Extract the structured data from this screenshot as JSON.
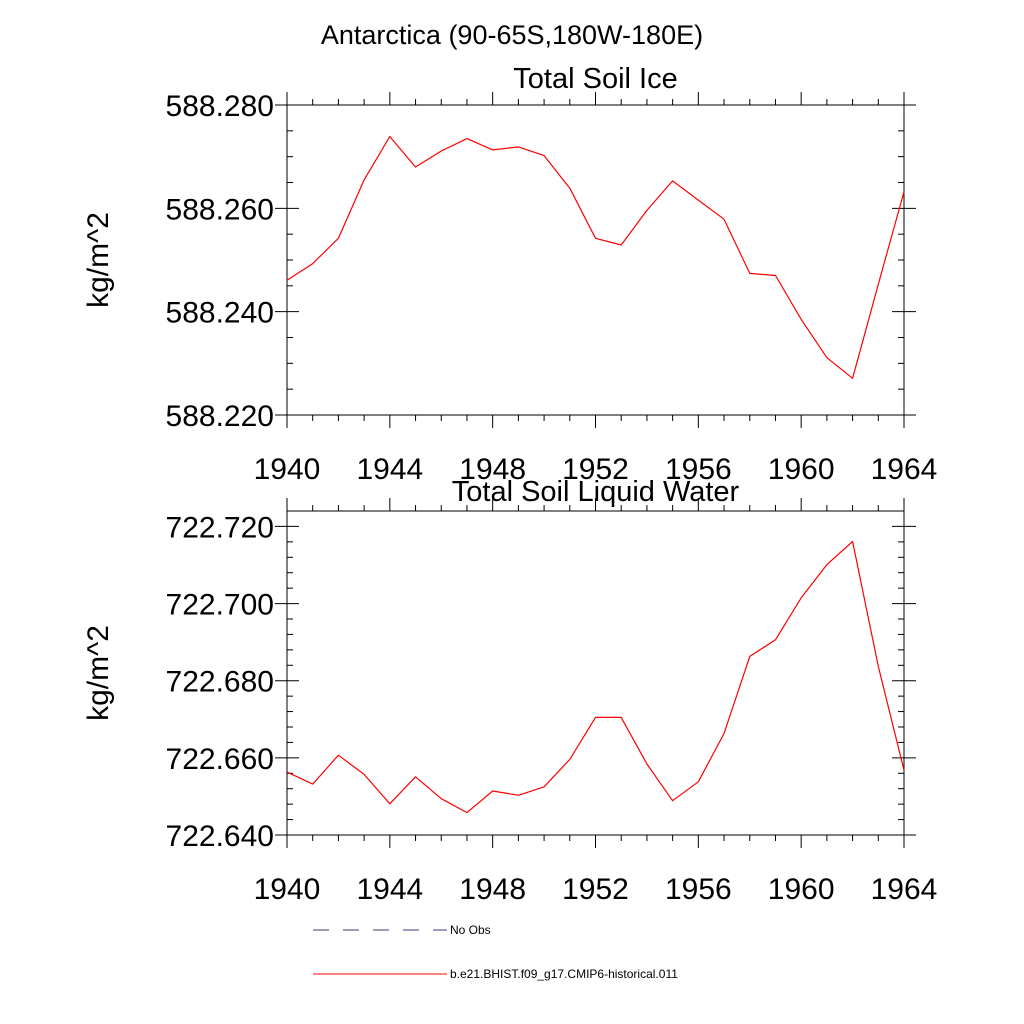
{
  "figure": {
    "title": "Antarctica (90-65S,180W-180E)"
  },
  "colors": {
    "model_line": "#ff0000",
    "obs_line": "#3a3a7a",
    "axis": "#000000",
    "background": "#ffffff"
  },
  "legend": {
    "placement": "bottom",
    "entries": [
      {
        "label": "No Obs",
        "style": "dashed",
        "color": "#3a3a7a"
      },
      {
        "label": "b.e21.BHIST.f09_g17.CMIP6-historical.011",
        "style": "solid",
        "color": "#ff0000"
      }
    ]
  },
  "chart_data": [
    {
      "type": "line",
      "title": "Total Soil Ice",
      "xlabel": "",
      "ylabel": "kg/m^2",
      "xlim": [
        1940,
        1964
      ],
      "ylim": [
        588.22,
        588.28
      ],
      "x_ticks": [
        1940,
        1944,
        1948,
        1952,
        1956,
        1960,
        1964
      ],
      "y_ticks": [
        588.22,
        588.24,
        588.26,
        588.28
      ],
      "y_tick_labels": [
        "588.220",
        "588.240",
        "588.260",
        "588.280"
      ],
      "x_minor_step": 1,
      "y_minor_step": 0.005,
      "grid": false,
      "series": [
        {
          "name": "b.e21.BHIST.f09_g17.CMIP6-historical.011",
          "x": [
            1940,
            1941,
            1942,
            1943,
            1944,
            1945,
            1946,
            1947,
            1948,
            1949,
            1950,
            1951,
            1952,
            1953,
            1954,
            1955,
            1956,
            1957,
            1958,
            1959,
            1960,
            1961,
            1962,
            1963,
            1964
          ],
          "values": [
            588.2461,
            588.2493,
            588.2542,
            588.2655,
            588.2739,
            588.268,
            588.2711,
            588.2735,
            588.2713,
            588.2719,
            588.2702,
            588.2639,
            588.2542,
            588.2529,
            588.2596,
            588.2653,
            588.2616,
            588.2579,
            588.2474,
            588.247,
            588.2385,
            588.2311,
            588.2271,
            588.2453,
            588.2632
          ]
        }
      ]
    },
    {
      "type": "line",
      "title": "Total Soil Liquid Water",
      "xlabel": "",
      "ylabel": "kg/m^2",
      "xlim": [
        1940,
        1964
      ],
      "ylim": [
        722.64,
        722.724
      ],
      "x_ticks": [
        1940,
        1944,
        1948,
        1952,
        1956,
        1960,
        1964
      ],
      "y_ticks": [
        722.64,
        722.66,
        722.68,
        722.7,
        722.72
      ],
      "y_tick_labels": [
        "722.640",
        "722.660",
        "722.680",
        "722.700",
        "722.720"
      ],
      "x_minor_step": 1,
      "y_minor_step": 0.004,
      "grid": false,
      "series": [
        {
          "name": "b.e21.BHIST.f09_g17.CMIP6-historical.011",
          "x": [
            1940,
            1941,
            1942,
            1943,
            1944,
            1945,
            1946,
            1947,
            1948,
            1949,
            1950,
            1951,
            1952,
            1953,
            1954,
            1955,
            1956,
            1957,
            1958,
            1959,
            1960,
            1961,
            1962,
            1963,
            1964
          ],
          "values": [
            722.6563,
            722.6532,
            722.6607,
            722.6557,
            722.6481,
            722.6551,
            722.6494,
            722.6458,
            722.6514,
            722.6503,
            722.6525,
            722.6596,
            722.6705,
            722.6705,
            722.6584,
            722.6489,
            722.6538,
            722.6663,
            722.6863,
            722.6906,
            722.7015,
            722.7101,
            722.7161,
            722.6837,
            722.6568
          ]
        }
      ]
    }
  ]
}
